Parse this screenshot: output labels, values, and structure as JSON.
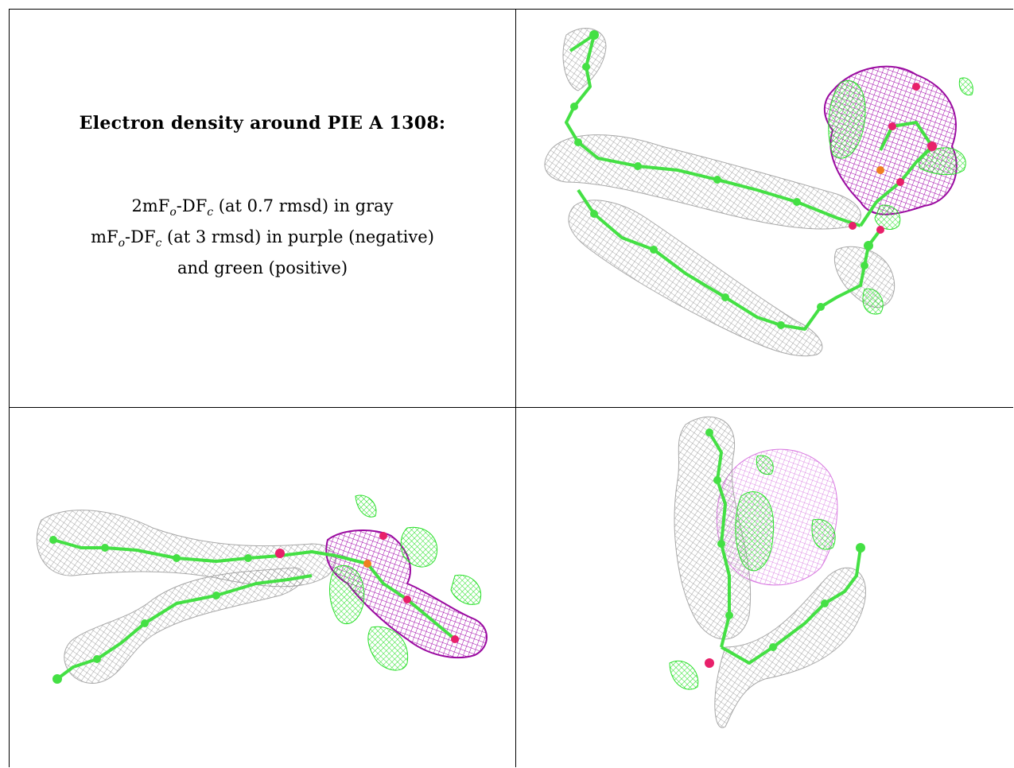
{
  "title": "Electron density around PIE A 1308:",
  "legend": {
    "line1_pre": "2mF",
    "line1_sub1": "o",
    "line1_mid": "-DF",
    "line1_sub2": "c",
    "line1_post": " (at 0.7 rmsd) in gray",
    "line2_pre": "mF",
    "line2_sub1": "o",
    "line2_mid": "-DF",
    "line2_sub2": "c",
    "line2_post": " (at 3 rmsd) in purple (negative)",
    "line3": "and green (positive)"
  },
  "colors": {
    "gray_mesh": "#9a9a9a",
    "purple_mesh": "#b000b0",
    "light_purple_mesh": "#e080e8",
    "green_mesh": "#33ee33",
    "stick": "#44e044",
    "oxygen": "#e8206a",
    "phosphorus": "#f08020"
  }
}
